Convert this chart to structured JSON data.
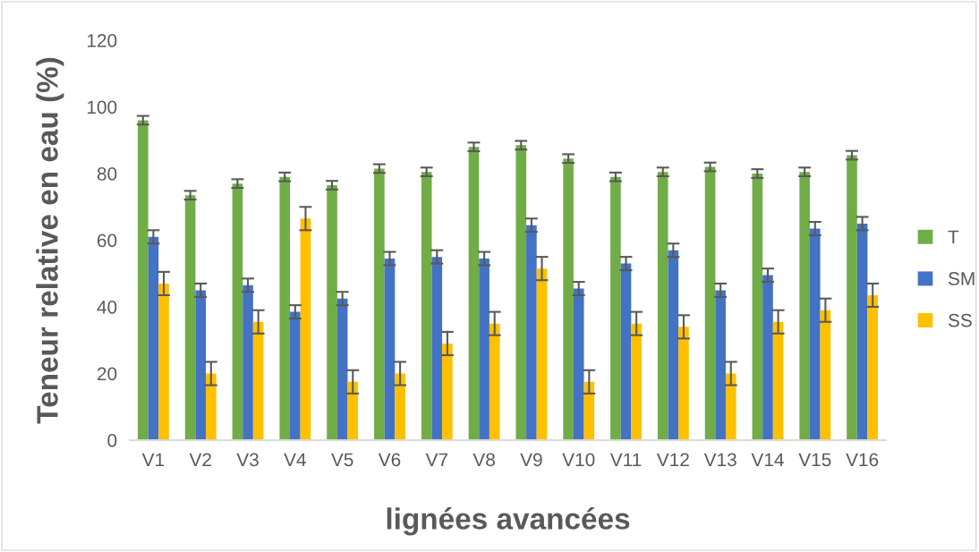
{
  "chart_data": {
    "type": "bar",
    "xlabel": "lignées avancées",
    "ylabel": "Teneur relative en eau (%)",
    "categories": [
      "V1",
      "V2",
      "V3",
      "V4",
      "V5",
      "V6",
      "V7",
      "V8",
      "V9",
      "V10",
      "V11",
      "V12",
      "V13",
      "V14",
      "V15",
      "V16"
    ],
    "series": [
      {
        "name": "T",
        "color": "#70ad47",
        "values": [
          96,
          73.5,
          77,
          79,
          76.5,
          81.5,
          80.5,
          88,
          88.5,
          84.5,
          79,
          80.5,
          82,
          80,
          80.5,
          85.5
        ],
        "errors": [
          1.3,
          1.3,
          1.3,
          1.3,
          1.3,
          1.3,
          1.3,
          1.3,
          1.3,
          1.3,
          1.3,
          1.3,
          1.3,
          1.3,
          1.3,
          1.3
        ]
      },
      {
        "name": "SM",
        "color": "#4472c4",
        "values": [
          61,
          45,
          46.5,
          38.5,
          42.5,
          54.5,
          55,
          54.5,
          64.5,
          45.5,
          53,
          57,
          45,
          49.5,
          63.5,
          65
        ],
        "errors": [
          2,
          2,
          2,
          2,
          2,
          2,
          2,
          2,
          2,
          2,
          2,
          2,
          2,
          2,
          2,
          2
        ]
      },
      {
        "name": "SS",
        "color": "#ffc000",
        "values": [
          47,
          20,
          35.5,
          66.5,
          17.5,
          20,
          29,
          35,
          51.5,
          17.5,
          35,
          34,
          20,
          35.5,
          39,
          43.5
        ],
        "errors": [
          3.5,
          3.5,
          3.5,
          3.5,
          3.5,
          3.5,
          3.5,
          3.5,
          3.5,
          3.5,
          3.5,
          3.5,
          3.5,
          3.5,
          3.5,
          3.5
        ]
      }
    ],
    "ylim": [
      0,
      120
    ],
    "yticks": [
      0,
      20,
      40,
      60,
      80,
      100,
      120
    ],
    "grid": false,
    "legend": "right"
  }
}
